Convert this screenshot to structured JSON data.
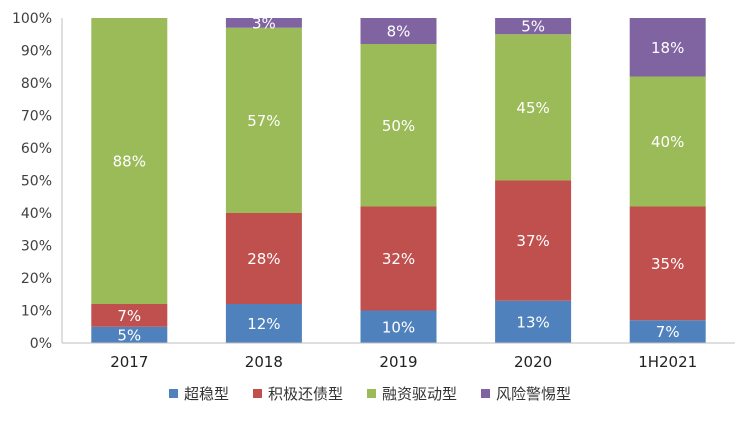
{
  "chart_data": {
    "type": "bar",
    "stacked": true,
    "categories": [
      "2017",
      "2018",
      "2019",
      "2020",
      "1H2021"
    ],
    "ylim": [
      0,
      100
    ],
    "y_ticks": [
      "0%",
      "10%",
      "20%",
      "30%",
      "40%",
      "50%",
      "60%",
      "70%",
      "80%",
      "90%",
      "100%"
    ],
    "grid": false,
    "legend_position": "bottom",
    "series": [
      {
        "name": "超稳型",
        "color": "#4f81bd",
        "values": [
          5,
          12,
          10,
          13,
          7
        ]
      },
      {
        "name": "积极还债型",
        "color": "#c0504d",
        "values": [
          7,
          28,
          32,
          37,
          35
        ]
      },
      {
        "name": "融资驱动型",
        "color": "#9bbb59",
        "values": [
          88,
          57,
          50,
          45,
          40
        ]
      },
      {
        "name": "风险警惕型",
        "color": "#8064a2",
        "values": [
          0,
          3,
          8,
          5,
          18
        ]
      }
    ],
    "data_labels": [
      [
        "5%",
        "12%",
        "10%",
        "13%",
        "7%"
      ],
      [
        "7%",
        "28%",
        "32%",
        "37%",
        "35%"
      ],
      [
        "88%",
        "57%",
        "50%",
        "45%",
        "40%"
      ],
      [
        "",
        "3%",
        "8%",
        "5%",
        "18%"
      ]
    ]
  }
}
